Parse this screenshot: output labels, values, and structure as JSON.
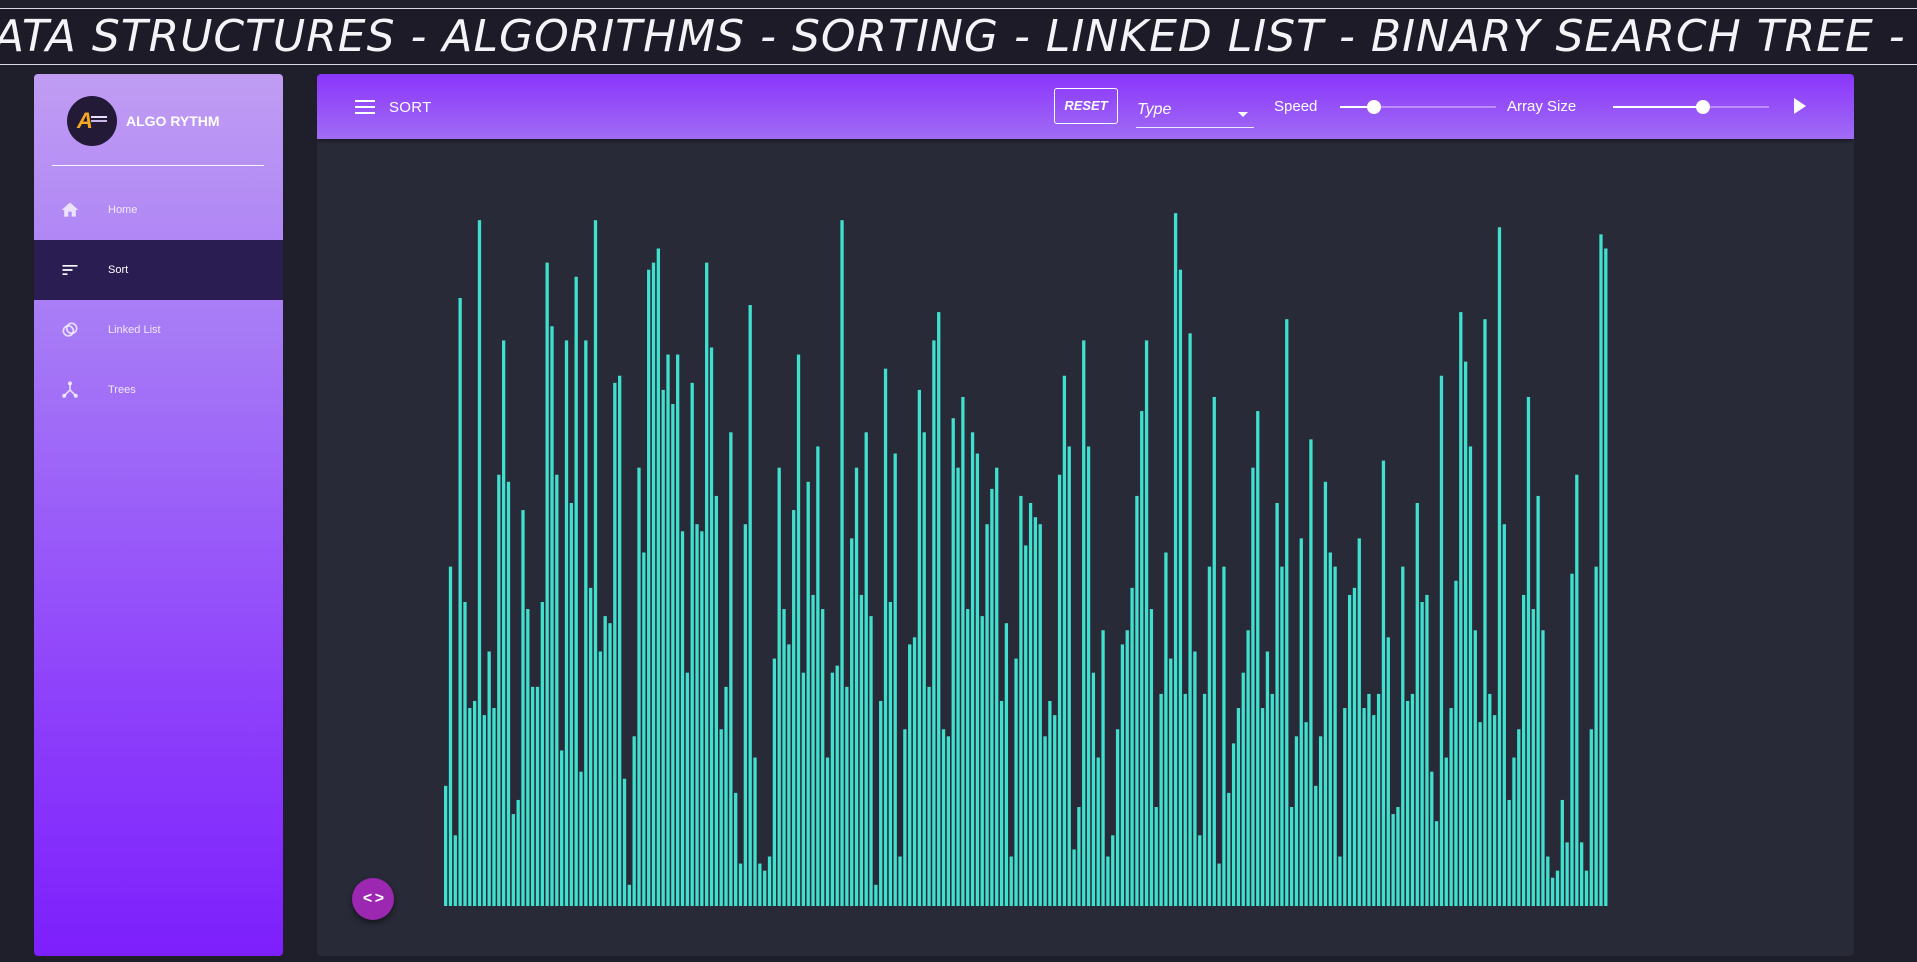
{
  "marquee": {
    "text": "ATA STRUCTURES - ALGORITHMS - SORTING - LINKED LIST - BINARY SEARCH TREE - MERGE"
  },
  "sidebar": {
    "brand_name": "ALGO RYTHM",
    "items": [
      {
        "label": "Home",
        "icon": "home-icon",
        "active": false
      },
      {
        "label": "Sort",
        "icon": "sort-icon",
        "active": true
      },
      {
        "label": "Linked List",
        "icon": "linked-list-icon",
        "active": false
      },
      {
        "label": "Trees",
        "icon": "tree-icon",
        "active": false
      }
    ]
  },
  "toolbar": {
    "title": "SORT",
    "reset_label": "RESET",
    "type_value": "Type",
    "speed_label": "Speed",
    "speed_value": 0.22,
    "size_label": "Array Size",
    "size_value": 0.58
  },
  "colors": {
    "bar": "#40e0cf",
    "accent": "#8a35fb",
    "active_nav": "#2a1d52",
    "fab": "#9c27b0"
  },
  "chart_data": {
    "type": "bar",
    "ylim": [
      0,
      100
    ],
    "values": [
      17,
      48,
      10,
      86,
      43,
      28,
      29,
      97,
      27,
      36,
      28,
      61,
      80,
      60,
      13,
      15,
      56,
      42,
      31,
      31,
      43,
      91,
      82,
      61,
      22,
      80,
      57,
      89,
      19,
      80,
      45,
      97,
      36,
      41,
      40,
      74,
      75,
      18,
      3,
      24,
      62,
      50,
      90,
      91,
      93,
      73,
      78,
      71,
      78,
      53,
      33,
      74,
      54,
      53,
      91,
      79,
      58,
      25,
      31,
      67,
      16,
      6,
      54,
      85,
      21,
      6,
      5,
      7,
      35,
      62,
      42,
      37,
      56,
      78,
      33,
      60,
      44,
      65,
      42,
      21,
      33,
      34,
      97,
      31,
      52,
      62,
      44,
      67,
      41,
      3,
      29,
      76,
      43,
      64,
      7,
      25,
      37,
      38,
      73,
      67,
      31,
      80,
      84,
      25,
      24,
      69,
      62,
      72,
      42,
      67,
      64,
      41,
      54,
      59,
      62,
      29,
      40,
      7,
      35,
      58,
      51,
      57,
      55,
      54,
      24,
      29,
      27,
      61,
      75,
      65,
      8,
      14,
      80,
      65,
      33,
      21,
      39,
      7,
      10,
      25,
      37,
      39,
      45,
      58,
      70,
      80,
      42,
      14,
      30,
      50,
      35,
      98,
      90,
      30,
      81,
      36,
      10,
      30,
      48,
      72,
      6,
      48,
      16,
      23,
      28,
      33,
      39,
      62,
      70,
      28,
      36,
      30,
      57,
      48,
      83,
      14,
      24,
      52,
      26,
      66,
      17,
      24,
      60,
      50,
      48,
      7,
      28,
      44,
      45,
      52,
      28,
      30,
      27,
      30,
      63,
      38,
      13,
      14,
      48,
      29,
      30,
      57,
      43,
      44,
      19,
      12,
      75,
      21,
      28,
      46,
      84,
      77,
      65,
      39,
      26,
      83,
      30,
      27,
      96,
      54,
      15,
      21,
      25,
      44,
      72,
      42,
      58,
      39,
      7,
      4,
      5,
      15,
      9,
      47,
      61,
      9,
      5,
      25,
      48,
      95,
      93
    ]
  }
}
